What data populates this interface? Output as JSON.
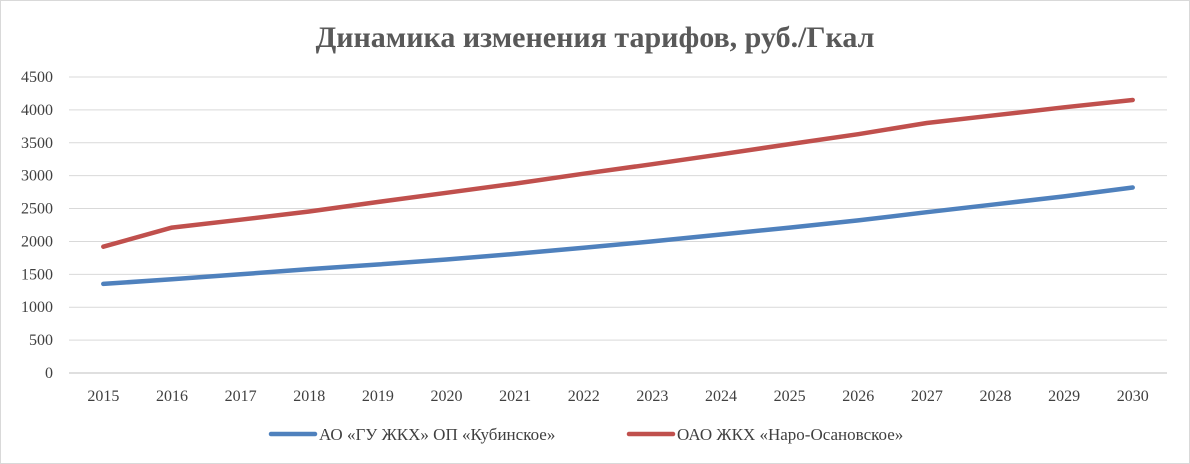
{
  "chart_data": {
    "type": "line",
    "title": "Динамика изменения тарифов,  руб./Гкал",
    "xlabel": "",
    "ylabel": "",
    "categories": [
      "2015",
      "2016",
      "2017",
      "2018",
      "2019",
      "2020",
      "2021",
      "2022",
      "2023",
      "2024",
      "2025",
      "2026",
      "2027",
      "2028",
      "2029",
      "2030"
    ],
    "ylim": [
      0,
      4500
    ],
    "yticks": [
      0,
      500,
      1000,
      1500,
      2000,
      2500,
      3000,
      3500,
      4000,
      4500
    ],
    "grid": true,
    "legend_position": "bottom",
    "series": [
      {
        "name": "АО «ГУ ЖКХ» ОП «Кубинское»",
        "color": "#4f81bd",
        "values": [
          1355,
          1425,
          1500,
          1580,
          1650,
          1725,
          1810,
          1905,
          2000,
          2105,
          2210,
          2320,
          2445,
          2565,
          2685,
          2820
        ]
      },
      {
        "name": "ОАО ЖКХ «Наро-Осановское»",
        "color": "#c0504d",
        "values": [
          1920,
          2210,
          2330,
          2455,
          2600,
          2740,
          2880,
          3030,
          3175,
          3325,
          3480,
          3630,
          3800,
          3920,
          4040,
          4150
        ]
      }
    ]
  }
}
